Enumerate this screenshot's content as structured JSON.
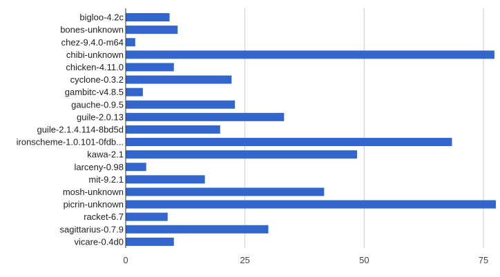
{
  "chart_data": {
    "type": "bar",
    "orientation": "horizontal",
    "categories": [
      "bigloo-4.2c",
      "bones-unknown",
      "chez-9.4.0-m64",
      "chibi-unknown",
      "chicken-4.11.0",
      "cyclone-0.3.2",
      "gambitc-v4.8.5",
      "gauche-0.9.5",
      "guile-2.0.13",
      "guile-2.1.4.114-8bd5d",
      "ironscheme-1.0.101-0fdb...",
      "kawa-2.1",
      "larceny-0.98",
      "mit-9.2.1",
      "mosh-unknown",
      "picrin-unknown",
      "racket-6.7",
      "sagittarius-0.7.9",
      "vicare-0.4d0"
    ],
    "values": [
      9.2,
      10.9,
      2.0,
      77.3,
      10.1,
      22.2,
      3.6,
      22.9,
      33.2,
      19.8,
      68.4,
      48.5,
      4.3,
      16.6,
      41.6,
      77.6,
      8.8,
      29.9,
      10.1
    ],
    "xlim": [
      0,
      77.6
    ],
    "x_ticks": [
      "0",
      "25",
      "50",
      "75"
    ],
    "x_tick_values": [
      0,
      25,
      50,
      75
    ],
    "grid": "vertical",
    "colors": {
      "bar": "#3366cc",
      "gridline": "#cccccc",
      "axis": "#333333"
    }
  }
}
